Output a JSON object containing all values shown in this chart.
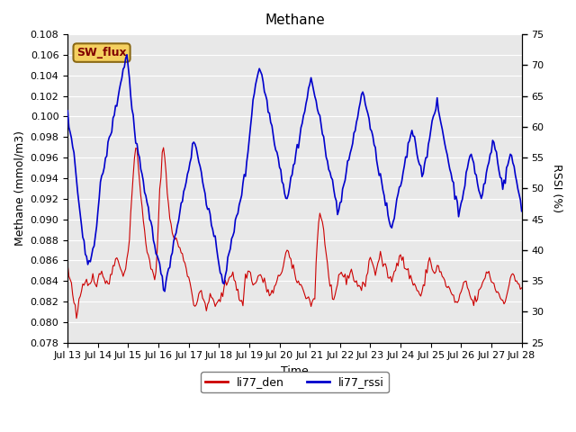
{
  "title": "Methane",
  "xlabel": "Time",
  "ylabel_left": "Methane (mmol/m3)",
  "ylabel_right": "RSSI (%)",
  "ylim_left": [
    0.078,
    0.108
  ],
  "ylim_right": [
    25,
    75
  ],
  "annotation_text": "SW_flux",
  "legend": [
    "li77_den",
    "li77_rssi"
  ],
  "color_red": "#cc0000",
  "color_blue": "#0000cc",
  "background_color": "#e8e8e8",
  "x_ticks": [
    "Jul 13",
    "Jul 14",
    "Jul 15",
    "Jul 16",
    "Jul 17",
    "Jul 18",
    "Jul 19",
    "Jul 20",
    "Jul 21",
    "Jul 22",
    "Jul 23",
    "Jul 24",
    "Jul 25",
    "Jul 26",
    "Jul 27",
    "Jul 28"
  ],
  "x_tick_positions": [
    0,
    24,
    48,
    72,
    96,
    120,
    144,
    168,
    192,
    216,
    240,
    264,
    288,
    312,
    336,
    360
  ],
  "red_data": [
    0.0855,
    0.0845,
    0.084,
    0.0835,
    0.0828,
    0.082,
    0.0815,
    0.08,
    0.081,
    0.082,
    0.0825,
    0.083,
    0.0835,
    0.084,
    0.0842,
    0.0845,
    0.084,
    0.0835,
    0.0838,
    0.0842,
    0.0845,
    0.0842,
    0.0838,
    0.0835,
    0.084,
    0.0845,
    0.0848,
    0.085,
    0.0848,
    0.0845,
    0.0842,
    0.0838,
    0.0835,
    0.0838,
    0.084,
    0.0845,
    0.085,
    0.0855,
    0.086,
    0.0865,
    0.0862,
    0.0858,
    0.0855,
    0.0852,
    0.085,
    0.0848,
    0.085,
    0.0852,
    0.0858,
    0.0865,
    0.088,
    0.09,
    0.092,
    0.094,
    0.0955,
    0.0965,
    0.097,
    0.096,
    0.0945,
    0.0928,
    0.0915,
    0.0905,
    0.0895,
    0.0885,
    0.0875,
    0.0868,
    0.086,
    0.0855,
    0.085,
    0.0848,
    0.0845,
    0.0842,
    0.085,
    0.087,
    0.0905,
    0.093,
    0.095,
    0.0965,
    0.097,
    0.096,
    0.0945,
    0.093,
    0.0915,
    0.09,
    0.0892,
    0.0888,
    0.0885,
    0.0882,
    0.088,
    0.0878,
    0.0875,
    0.0872,
    0.0868,
    0.0865,
    0.0862,
    0.086,
    0.0855,
    0.085,
    0.0845,
    0.084,
    0.0835,
    0.0828,
    0.0822,
    0.0818,
    0.0815,
    0.082,
    0.0825,
    0.083,
    0.0828,
    0.0825,
    0.0822,
    0.082,
    0.0818,
    0.0815,
    0.0818,
    0.082,
    0.0822,
    0.0825,
    0.0822,
    0.082,
    0.0818,
    0.0815,
    0.0818,
    0.082,
    0.0822,
    0.0825,
    0.0828,
    0.0832,
    0.0835,
    0.0838,
    0.084,
    0.0842,
    0.0845,
    0.0848,
    0.085,
    0.0845,
    0.084,
    0.0835,
    0.083,
    0.0825,
    0.0822,
    0.082,
    0.0818,
    0.082,
    0.0842,
    0.0845,
    0.0848,
    0.085,
    0.0848,
    0.0845,
    0.0842,
    0.0838,
    0.0835,
    0.0838,
    0.084,
    0.0845,
    0.0848,
    0.0845,
    0.0842,
    0.084,
    0.0838,
    0.0835,
    0.0832,
    0.083,
    0.0828,
    0.0825,
    0.0828,
    0.083,
    0.0832,
    0.0835,
    0.0838,
    0.084,
    0.0845,
    0.0848,
    0.085,
    0.0855,
    0.086,
    0.0865,
    0.087,
    0.0868,
    0.0865,
    0.086,
    0.0855,
    0.085,
    0.0848,
    0.0845,
    0.0842,
    0.084,
    0.0838,
    0.0836,
    0.0834,
    0.0832,
    0.083,
    0.0828,
    0.0826,
    0.0824,
    0.0822,
    0.082,
    0.0818,
    0.082,
    0.0822,
    0.0825,
    0.086,
    0.088,
    0.09,
    0.0905,
    0.09,
    0.0895,
    0.0888,
    0.088,
    0.087,
    0.0858,
    0.0845,
    0.0835,
    0.0828,
    0.0822,
    0.0818,
    0.0822,
    0.0828,
    0.0835,
    0.0842,
    0.0848,
    0.085,
    0.0848,
    0.0845,
    0.0842,
    0.084,
    0.0842,
    0.0845,
    0.0848,
    0.085,
    0.0848,
    0.0845,
    0.0842,
    0.084,
    0.0838,
    0.0836,
    0.0835,
    0.0834,
    0.0832,
    0.0834,
    0.0836,
    0.084,
    0.0845,
    0.085,
    0.0858,
    0.0865,
    0.086,
    0.0855,
    0.085,
    0.0848,
    0.0852,
    0.0858,
    0.0862,
    0.0865,
    0.0862,
    0.0858,
    0.0855,
    0.0852,
    0.085,
    0.0848,
    0.0845,
    0.0842,
    0.084,
    0.0842,
    0.0845,
    0.085,
    0.0855,
    0.086,
    0.0865,
    0.0868,
    0.0865,
    0.0862,
    0.0858,
    0.0855,
    0.0852,
    0.085,
    0.0848,
    0.0845,
    0.0842,
    0.084,
    0.0838,
    0.0836,
    0.0834,
    0.0832,
    0.083,
    0.0828,
    0.0825,
    0.0828,
    0.0832,
    0.0838,
    0.0845,
    0.0852,
    0.0858,
    0.0862,
    0.0858,
    0.0854,
    0.085,
    0.0848,
    0.085,
    0.0852,
    0.0855,
    0.0852,
    0.0848,
    0.0845,
    0.0842,
    0.084,
    0.0838,
    0.0836,
    0.0834,
    0.0832,
    0.083,
    0.0828,
    0.0825,
    0.0822,
    0.082,
    0.0818,
    0.082,
    0.0822,
    0.0825,
    0.0828,
    0.0832,
    0.0836,
    0.084,
    0.0838,
    0.0834,
    0.083,
    0.0826,
    0.0822,
    0.082,
    0.0818,
    0.082,
    0.0822,
    0.0825,
    0.0828,
    0.083,
    0.0832,
    0.0836,
    0.084,
    0.0844,
    0.0848,
    0.085,
    0.0848,
    0.0845,
    0.0842,
    0.084,
    0.0838,
    0.0835,
    0.0832,
    0.083,
    0.0828,
    0.0826,
    0.0824,
    0.0822,
    0.082,
    0.0822,
    0.0824,
    0.0828,
    0.0832,
    0.0836,
    0.084,
    0.0845,
    0.0848,
    0.0845,
    0.0842,
    0.084,
    0.0838,
    0.0836,
    0.0834,
    0.0832
  ],
  "blue_data_rssi": [
    62,
    60,
    59,
    58,
    57,
    56,
    54,
    52,
    50,
    48,
    46,
    44,
    42,
    41,
    40,
    39,
    38,
    37,
    38,
    39,
    40,
    41,
    42,
    43,
    45,
    47,
    49,
    51,
    52,
    53,
    54,
    55,
    56,
    57,
    58,
    59,
    60,
    61,
    62,
    63,
    64,
    65,
    66,
    67,
    68,
    69,
    70,
    71,
    72,
    70,
    68,
    66,
    64,
    62,
    60,
    58,
    57,
    56,
    55,
    54,
    52,
    51,
    50,
    49,
    48,
    47,
    46,
    45,
    44,
    43,
    42,
    41,
    40,
    39,
    38,
    37,
    36,
    35,
    34,
    34,
    35,
    36,
    37,
    38,
    39,
    40,
    41,
    42,
    43,
    44,
    45,
    46,
    47,
    48,
    49,
    50,
    51,
    52,
    53,
    54,
    55,
    56,
    57,
    58,
    57,
    56,
    55,
    54,
    53,
    52,
    51,
    50,
    49,
    48,
    47,
    46,
    45,
    44,
    43,
    42,
    41,
    40,
    39,
    38,
    37,
    36,
    35,
    35,
    36,
    37,
    38,
    39,
    40,
    41,
    42,
    43,
    44,
    45,
    46,
    47,
    48,
    49,
    50,
    51,
    52,
    53,
    55,
    57,
    59,
    61,
    63,
    65,
    66,
    67,
    68,
    69,
    70,
    69,
    68,
    67,
    66,
    65,
    64,
    63,
    62,
    61,
    60,
    59,
    58,
    57,
    56,
    55,
    54,
    53,
    52,
    51,
    50,
    49,
    48,
    49,
    50,
    51,
    52,
    53,
    54,
    55,
    56,
    57,
    58,
    59,
    60,
    61,
    62,
    63,
    64,
    65,
    66,
    67,
    68,
    67,
    66,
    65,
    64,
    63,
    62,
    61,
    60,
    59,
    58,
    57,
    56,
    55,
    54,
    53,
    52,
    51,
    50,
    49,
    48,
    47,
    46,
    47,
    48,
    49,
    50,
    51,
    52,
    53,
    54,
    55,
    56,
    57,
    58,
    59,
    60,
    61,
    62,
    63,
    64,
    65,
    66,
    65,
    64,
    63,
    62,
    61,
    60,
    59,
    58,
    57,
    56,
    55,
    54,
    53,
    52,
    51,
    50,
    49,
    48,
    47,
    46,
    45,
    44,
    43,
    44,
    45,
    46,
    47,
    48,
    49,
    50,
    51,
    52,
    53,
    54,
    55,
    56,
    57,
    58,
    59,
    60,
    59,
    58,
    57,
    56,
    55,
    54,
    53,
    52,
    53,
    54,
    55,
    56,
    57,
    58,
    59,
    60,
    61,
    62,
    63,
    64,
    63,
    62,
    61,
    60,
    59,
    58,
    57,
    56,
    55,
    54,
    53,
    52,
    51,
    50,
    49,
    48,
    47,
    46,
    47,
    48,
    49,
    50,
    51,
    52,
    53,
    54,
    55,
    56,
    55,
    54,
    53,
    52,
    51,
    50,
    49,
    48,
    49,
    50,
    51,
    52,
    53,
    54,
    55,
    56,
    57,
    58,
    57,
    56,
    55,
    54,
    53,
    52,
    51,
    50,
    51,
    52,
    53,
    54,
    55,
    56,
    55,
    54,
    53,
    52,
    51,
    50,
    49,
    48,
    47
  ]
}
